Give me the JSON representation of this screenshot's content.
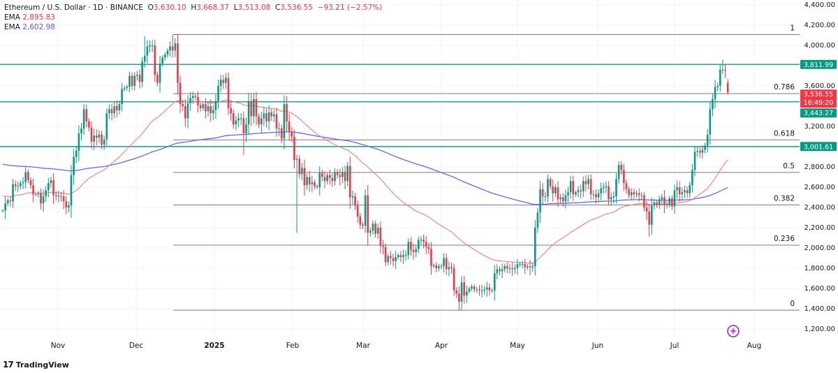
{
  "header": {
    "symbol": "Ethereum / U.S. Dollar · 1D · BINANCE",
    "open_label": "O",
    "open": "3,630.10",
    "high_label": "H",
    "high": "3,668.37",
    "low_label": "L",
    "low": "3,513.08",
    "close_label": "C",
    "close": "3,536.55",
    "change": "−93.21 (−2.57%)",
    "ema1_label": "EMA",
    "ema1_value": "2,895.83",
    "ema2_label": "EMA",
    "ema2_value": "2,602.98"
  },
  "branding": {
    "logo_text": "TradingView"
  },
  "colors": {
    "up": "#089981",
    "down": "#f23645",
    "ema_fast": "#f77c80",
    "ema_slow": "#6a63f0",
    "levels": "#26a69a",
    "fib": "#787b86"
  },
  "chart_data": {
    "type": "candlestick",
    "title": "Ethereum / U.S. Dollar · 1D · BINANCE",
    "ylim": [
      1200,
      4400
    ],
    "y_ticks": [
      "4,400.00",
      "4,200.00",
      "4,000.00",
      "3,600.00",
      "3,200.00",
      "2,800.00",
      "2,600.00",
      "2,400.00",
      "2,200.00",
      "2,000.00",
      "1,800.00",
      "1,600.00",
      "1,400.00",
      "1,200.00"
    ],
    "y_tick_values": [
      4400,
      4200,
      4000,
      3600,
      3200,
      2800,
      2600,
      2400,
      2200,
      2000,
      1800,
      1600,
      1400,
      1200
    ],
    "x_ticks": [
      {
        "label": "Nov",
        "bold": false
      },
      {
        "label": "Dec",
        "bold": false
      },
      {
        "label": "2025",
        "bold": true
      },
      {
        "label": "Feb",
        "bold": false
      },
      {
        "label": "Mar",
        "bold": false
      },
      {
        "label": "Apr",
        "bold": false
      },
      {
        "label": "May",
        "bold": false
      },
      {
        "label": "Jun",
        "bold": false
      },
      {
        "label": "Jul",
        "bold": false
      },
      {
        "label": "Aug",
        "bold": false
      }
    ],
    "grid": true,
    "closes": [
      2370,
      2440,
      2470,
      2460,
      2630,
      2610,
      2610,
      2640,
      2650,
      2750,
      2670,
      2620,
      2530,
      2530,
      2540,
      2440,
      2510,
      2570,
      2640,
      2670,
      2520,
      2520,
      2510,
      2510,
      2460,
      2400,
      2420,
      2720,
      2900,
      2960,
      3130,
      3180,
      3370,
      3250,
      3190,
      3050,
      3110,
      3090,
      3120,
      3020,
      3070,
      3330,
      3370,
      3330,
      3400,
      3360,
      3420,
      3570,
      3580,
      3590,
      3700,
      3600,
      3700,
      3710,
      3640,
      3840,
      {
        "c": 3900,
        "h": 4090
      },
      3990,
      4000,
      4000,
      3710,
      3630,
      3820,
      3880,
      3910,
      3950,
      3990,
      {
        "c": 3950,
        "h": 4107
      },
      4020,
      3630,
      3420,
      3400,
      3280,
      3430,
      3480,
      3500,
      3490,
      3410,
      3380,
      3420,
      3350,
      3400,
      3330,
      3360,
      3450,
      3600,
      3660,
      3630,
      3680,
      3380,
      3330,
      3220,
      3260,
      3280,
      3280,
      {
        "c": 3130,
        "l": 2920
      },
      3220,
      3450,
      3300,
      3470,
      3300,
      3220,
      3280,
      3330,
      3250,
      3340,
      3300,
      3320,
      3180,
      3180,
      3080,
      3420,
      3250,
      3150,
      3100,
      2870,
      {
        "c": 2880,
        "l": 2150
      },
      2730,
      2790,
      2620,
      2700,
      2630,
      2650,
      2610,
      2600,
      2740,
      2700,
      2660,
      2720,
      2690,
      2660,
      2750,
      2720,
      2700,
      2750,
      2660,
      2810,
      2500,
      2510,
      2420,
      2310,
      2230,
      2220,
      2520,
      2150,
      2170,
      2240,
      2140,
      2200,
      2020,
      2010,
      1860,
      1920,
      1900,
      1870,
      1910,
      1930,
      1910,
      1930,
      1930,
      2060,
      1980,
      1960,
      1990,
      2080,
      2080,
      2060,
      2010,
      1990,
      1820,
      1830,
      1800,
      1820,
      1820,
      1900,
      1790,
      1810,
      1800,
      1580,
      1550,
      1470,
      {
        "c": 1660,
        "l": 1385
      },
      1530,
      1570,
      1600,
      1620,
      1590,
      1590,
      1580,
      1580,
      1590,
      1610,
      1580,
      1580,
      1750,
      1790,
      1770,
      1790,
      1820,
      1800,
      1800,
      1790,
      1800,
      1840,
      1840,
      1840,
      1810,
      1820,
      1810,
      1820,
      2200,
      2350,
      2580,
      2510,
      2510,
      2680,
      2610,
      2540,
      2600,
      2480,
      2500,
      2460,
      2520,
      2550,
      2660,
      2530,
      2550,
      2570,
      2560,
      2660,
      2630,
      2680,
      2530,
      2530,
      2500,
      2540,
      2590,
      2600,
      2610,
      2480,
      2500,
      2510,
      2680,
      2820,
      2770,
      2640,
      2580,
      2520,
      2550,
      2530,
      2540,
      2520,
      2520,
      2400,
      2360,
      {
        "c": 2230,
        "l": 2110
      },
      2420,
      2450,
      2430,
      2480,
      2500,
      2430,
      2430,
      2490,
      2410,
      2570,
      2600,
      2530,
      2550,
      2570,
      2540,
      2620,
      2770,
      2950,
      2960,
      2940,
      2970,
      3010,
      3120,
      3370,
      3470,
      3590,
      3600,
      3760,
      {
        "c": 3760,
        "h": 3860
      },
      3750,
      {
        "o": 3630.1,
        "h": 3668.37,
        "l": 3513.08,
        "c": 3536.55
      }
    ],
    "ema_fast_last": 2895.83,
    "ema_slow_last": 2602.98,
    "horizontal_levels": [
      {
        "value": 3811.99,
        "label": "3,811.99"
      },
      {
        "value": 3443.27,
        "label": "3,443.27"
      },
      {
        "value": 3001.61,
        "label": "3,001.61"
      }
    ],
    "last_price": {
      "value": 3536.55,
      "label": "3,536.55",
      "countdown": "16:49:20"
    },
    "fibonacci": {
      "high": 4107,
      "low": 1385,
      "levels": [
        {
          "ratio": 1,
          "label": "1"
        },
        {
          "ratio": 0.786,
          "label": "0.786"
        },
        {
          "ratio": 0.618,
          "label": "0.618"
        },
        {
          "ratio": 0.5,
          "label": "0.5"
        },
        {
          "ratio": 0.382,
          "label": "0.382"
        },
        {
          "ratio": 0.236,
          "label": "0.236"
        },
        {
          "ratio": 0,
          "label": "0"
        }
      ]
    }
  }
}
